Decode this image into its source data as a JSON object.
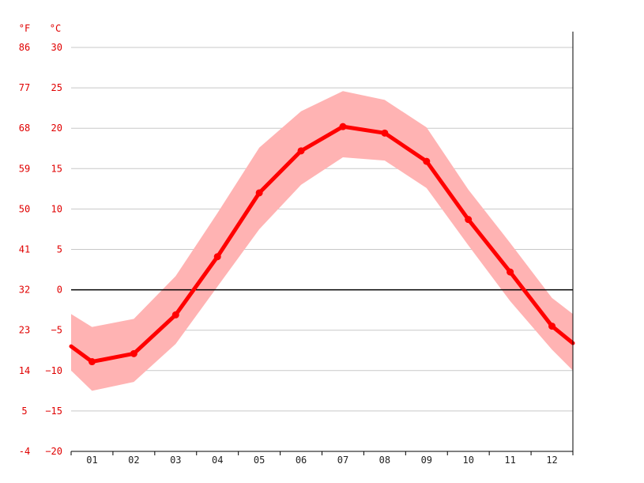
{
  "chart_data": {
    "type": "line",
    "xlabel": "",
    "categories": [
      "01",
      "02",
      "03",
      "04",
      "05",
      "06",
      "07",
      "08",
      "09",
      "10",
      "11",
      "12"
    ],
    "y_unit_left": "°F",
    "y_unit_right": "°C",
    "ylim": [
      -20,
      30
    ],
    "y_ticks_c": [
      30,
      25,
      20,
      15,
      10,
      5,
      0,
      -5,
      -10,
      -15,
      -20
    ],
    "y_ticks_f": [
      "86",
      "77",
      "68",
      "59",
      "50",
      "41",
      "32",
      "23",
      "14",
      "5",
      "-4"
    ],
    "grid": true,
    "zero_line": true,
    "series": [
      {
        "values": [
          -8.9,
          -7.9,
          -3.1,
          4.1,
          12.0,
          17.2,
          20.2,
          19.4,
          15.9,
          8.7,
          2.2,
          -4.5
        ],
        "color": "#ff0000"
      }
    ],
    "band": {
      "upper": [
        -4.6,
        -3.6,
        1.7,
        9.5,
        17.6,
        22.1,
        24.6,
        23.5,
        20.1,
        12.4,
        5.8,
        -1.0
      ],
      "lower": [
        -12.5,
        -11.4,
        -6.7,
        0.4,
        7.5,
        13.0,
        16.4,
        16.0,
        12.6,
        5.5,
        -1.4,
        -7.4
      ],
      "edge_left": [
        -3.0,
        -10.0
      ],
      "edge_right": [
        -3.0,
        -10.0
      ],
      "value_edge_left": -7.0,
      "value_edge_right": -6.6,
      "color": "#ffb3b3"
    }
  }
}
